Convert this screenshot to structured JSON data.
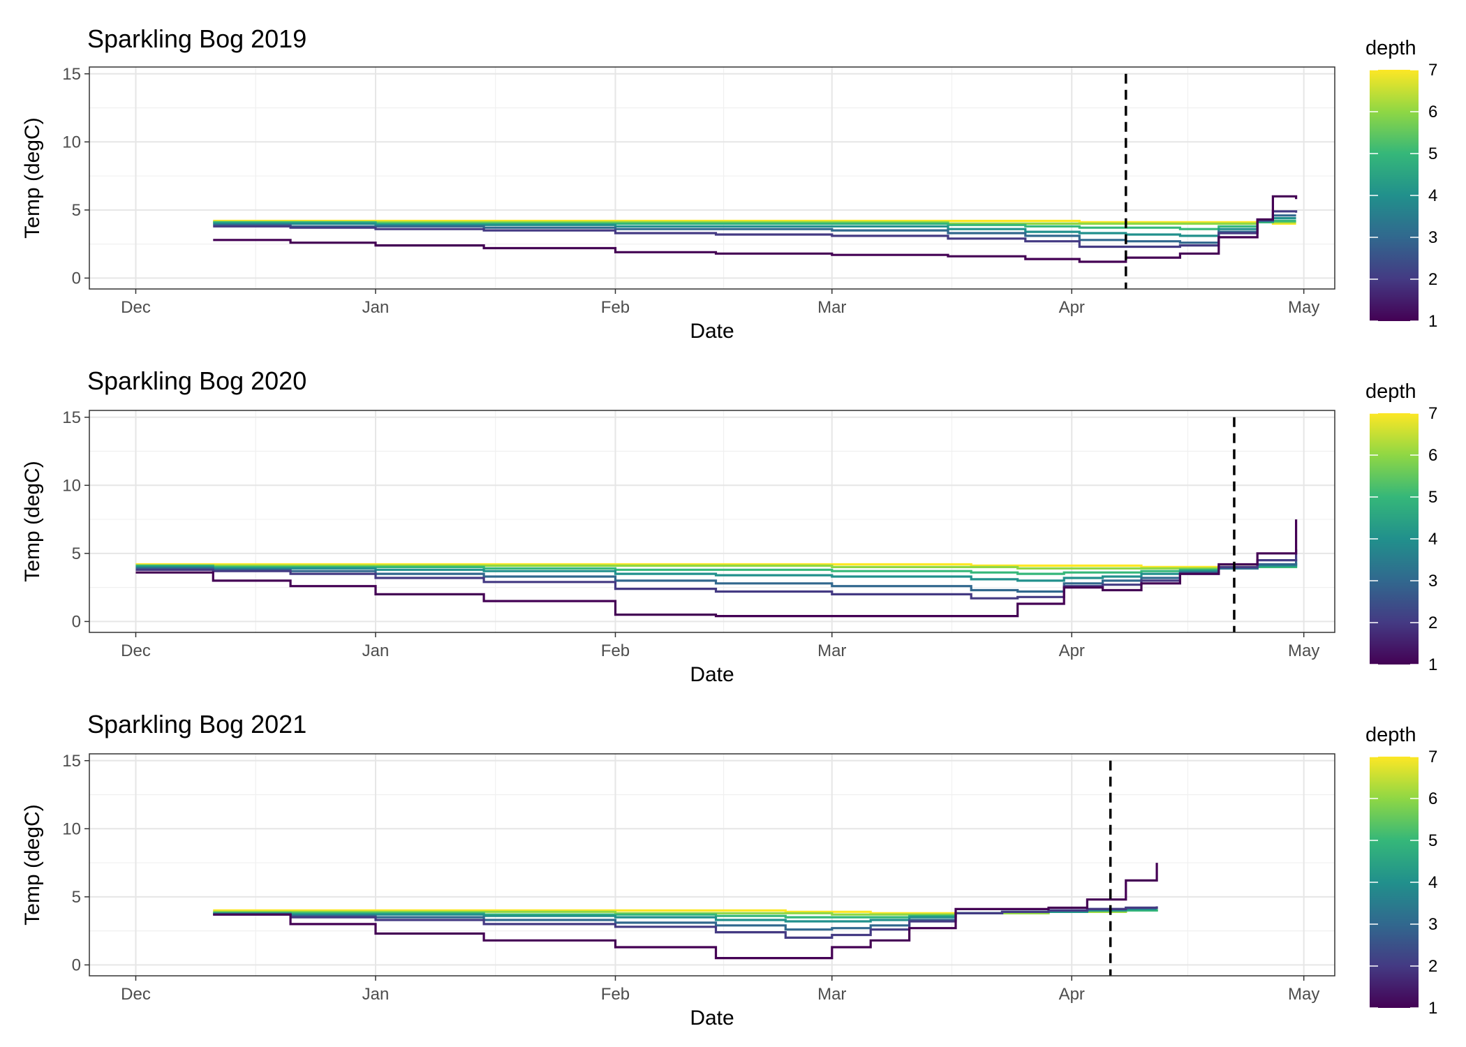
{
  "figure": {
    "type": "line-small-multiples",
    "x_axis_label": "Date",
    "y_axis_label": "Temp (degC)",
    "x_tick_labels": [
      "Dec",
      "Jan",
      "Feb",
      "Mar",
      "Apr",
      "May"
    ],
    "y_tick_labels": [
      "0",
      "5",
      "10",
      "15"
    ],
    "legend": {
      "title": "depth",
      "tick_labels": [
        "1",
        "2",
        "3",
        "4",
        "5",
        "6",
        "7"
      ]
    },
    "panel_titles": [
      "Sparkling Bog 2019",
      "Sparkling Bog 2020",
      "Sparkling Bog 2021"
    ]
  },
  "chart_data": [
    {
      "type": "line",
      "title": "Sparkling Bog 2019",
      "xlabel": "Date",
      "ylabel": "Temp (degC)",
      "x_unit": "days since Dec 1",
      "xlim": [
        -6,
        155
      ],
      "ylim": [
        -0.8,
        15.5
      ],
      "y_ticks": [
        0,
        5,
        10,
        15
      ],
      "grid": true,
      "color_scale": {
        "name": "viridis",
        "variable": "depth",
        "range": [
          1,
          7
        ]
      },
      "vline": {
        "x": 128,
        "style": "dashed",
        "color": "#000000"
      },
      "x": [
        10,
        20,
        31,
        45,
        62,
        75,
        90,
        105,
        115,
        122,
        128,
        135,
        140,
        145,
        147,
        150
      ],
      "series": [
        {
          "depth": 1,
          "values": [
            2.8,
            2.6,
            2.4,
            2.2,
            1.9,
            1.8,
            1.7,
            1.6,
            1.4,
            1.2,
            1.5,
            1.8,
            3.0,
            4.3,
            6.0,
            5.8
          ]
        },
        {
          "depth": 2,
          "values": [
            3.8,
            3.7,
            3.6,
            3.5,
            3.3,
            3.2,
            3.1,
            2.9,
            2.7,
            2.3,
            2.3,
            2.4,
            3.3,
            4.3,
            4.9,
            4.8
          ]
        },
        {
          "depth": 3,
          "values": [
            3.9,
            3.8,
            3.8,
            3.7,
            3.6,
            3.6,
            3.5,
            3.3,
            3.1,
            2.8,
            2.7,
            2.6,
            3.4,
            4.2,
            4.6,
            4.6
          ]
        },
        {
          "depth": 4,
          "values": [
            4.0,
            4.0,
            3.9,
            3.9,
            3.8,
            3.8,
            3.8,
            3.6,
            3.4,
            3.3,
            3.2,
            3.1,
            3.6,
            4.2,
            4.4,
            4.4
          ]
        },
        {
          "depth": 5,
          "values": [
            4.1,
            4.1,
            4.0,
            4.0,
            4.0,
            4.0,
            4.0,
            3.9,
            3.8,
            3.7,
            3.7,
            3.6,
            3.8,
            4.1,
            4.2,
            4.2
          ]
        },
        {
          "depth": 6,
          "values": [
            4.1,
            4.1,
            4.1,
            4.1,
            4.1,
            4.1,
            4.1,
            4.0,
            4.0,
            4.0,
            4.0,
            4.0,
            4.0,
            4.1,
            4.1,
            4.1
          ]
        },
        {
          "depth": 7,
          "values": [
            4.2,
            4.2,
            4.2,
            4.2,
            4.2,
            4.2,
            4.2,
            4.2,
            4.2,
            4.1,
            4.1,
            4.1,
            4.1,
            4.1,
            4.0,
            4.0
          ]
        }
      ]
    },
    {
      "type": "line",
      "title": "Sparkling Bog 2020",
      "xlabel": "Date",
      "ylabel": "Temp (degC)",
      "x_unit": "days since Dec 1",
      "xlim": [
        -6,
        155
      ],
      "ylim": [
        -0.8,
        15.5
      ],
      "y_ticks": [
        0,
        5,
        10,
        15
      ],
      "grid": true,
      "color_scale": {
        "name": "viridis",
        "variable": "depth",
        "range": [
          1,
          7
        ]
      },
      "vline": {
        "x": 142,
        "style": "dashed",
        "color": "#000000"
      },
      "x": [
        0,
        10,
        20,
        31,
        45,
        62,
        75,
        90,
        108,
        114,
        120,
        125,
        130,
        135,
        140,
        145,
        150
      ],
      "series": [
        {
          "depth": 1,
          "values": [
            3.6,
            3.0,
            2.6,
            2.0,
            1.5,
            0.5,
            0.4,
            0.4,
            0.4,
            1.3,
            2.5,
            2.3,
            2.8,
            3.5,
            4.2,
            5.0,
            7.5
          ]
        },
        {
          "depth": 2,
          "values": [
            3.8,
            3.7,
            3.5,
            3.2,
            2.9,
            2.4,
            2.2,
            2.0,
            1.7,
            1.8,
            2.6,
            2.7,
            3.0,
            3.5,
            4.0,
            4.5,
            5.3
          ]
        },
        {
          "depth": 3,
          "values": [
            3.9,
            3.8,
            3.7,
            3.5,
            3.3,
            3.0,
            2.8,
            2.6,
            2.3,
            2.2,
            2.8,
            3.0,
            3.2,
            3.6,
            3.9,
            4.2,
            4.6
          ]
        },
        {
          "depth": 4,
          "values": [
            4.0,
            3.9,
            3.9,
            3.8,
            3.7,
            3.5,
            3.4,
            3.3,
            3.1,
            3.0,
            3.2,
            3.3,
            3.5,
            3.7,
            3.9,
            4.1,
            4.3
          ]
        },
        {
          "depth": 5,
          "values": [
            4.1,
            4.0,
            4.0,
            4.0,
            3.9,
            3.8,
            3.8,
            3.7,
            3.6,
            3.5,
            3.6,
            3.6,
            3.7,
            3.8,
            3.9,
            4.0,
            4.1
          ]
        },
        {
          "depth": 6,
          "values": [
            4.1,
            4.1,
            4.1,
            4.1,
            4.1,
            4.1,
            4.1,
            4.0,
            4.0,
            3.9,
            3.9,
            3.9,
            3.9,
            3.9,
            3.9,
            4.0,
            4.0
          ]
        },
        {
          "depth": 7,
          "values": [
            4.2,
            4.2,
            4.2,
            4.2,
            4.2,
            4.2,
            4.2,
            4.2,
            4.1,
            4.1,
            4.1,
            4.1,
            4.0,
            4.0,
            4.0,
            4.0,
            4.0
          ]
        }
      ]
    },
    {
      "type": "line",
      "title": "Sparkling Bog 2021",
      "xlabel": "Date",
      "ylabel": "Temp (degC)",
      "x_unit": "days since Dec 1",
      "xlim": [
        -6,
        155
      ],
      "ylim": [
        -0.8,
        15.5
      ],
      "y_ticks": [
        0,
        5,
        10,
        15
      ],
      "grid": true,
      "color_scale": {
        "name": "viridis",
        "variable": "depth",
        "range": [
          1,
          7
        ]
      },
      "vline": {
        "x": 126,
        "style": "dashed",
        "color": "#000000"
      },
      "x": [
        10,
        20,
        31,
        45,
        62,
        75,
        84,
        90,
        95,
        100,
        106,
        112,
        118,
        123,
        128,
        132
      ],
      "series": [
        {
          "depth": 1,
          "values": [
            3.7,
            3.0,
            2.3,
            1.8,
            1.3,
            0.5,
            0.5,
            1.3,
            1.8,
            2.7,
            4.1,
            4.1,
            4.2,
            4.8,
            6.2,
            7.5
          ]
        },
        {
          "depth": 2,
          "values": [
            3.7,
            3.5,
            3.3,
            3.0,
            2.8,
            2.4,
            2.0,
            2.2,
            2.6,
            3.2,
            3.8,
            3.9,
            4.0,
            4.1,
            4.2,
            4.3
          ]
        },
        {
          "depth": 3,
          "values": [
            3.7,
            3.6,
            3.5,
            3.3,
            3.1,
            2.9,
            2.6,
            2.7,
            2.9,
            3.3,
            3.8,
            3.9,
            4.0,
            4.1,
            4.2,
            4.2
          ]
        },
        {
          "depth": 4,
          "values": [
            3.8,
            3.7,
            3.7,
            3.6,
            3.5,
            3.3,
            3.2,
            3.2,
            3.3,
            3.5,
            3.8,
            3.9,
            3.9,
            4.0,
            4.1,
            4.1
          ]
        },
        {
          "depth": 5,
          "values": [
            3.8,
            3.8,
            3.8,
            3.7,
            3.7,
            3.6,
            3.5,
            3.5,
            3.5,
            3.6,
            3.8,
            3.9,
            3.9,
            4.0,
            4.0,
            4.1
          ]
        },
        {
          "depth": 6,
          "values": [
            3.9,
            3.9,
            3.9,
            3.9,
            3.8,
            3.8,
            3.8,
            3.7,
            3.7,
            3.7,
            3.8,
            3.8,
            3.9,
            3.9,
            4.0,
            4.1
          ]
        },
        {
          "depth": 7,
          "values": [
            4.0,
            4.0,
            4.0,
            4.0,
            4.0,
            4.0,
            3.9,
            3.9,
            3.8,
            3.8,
            3.8,
            3.8,
            3.9,
            3.9,
            4.0,
            4.0
          ]
        }
      ]
    }
  ]
}
